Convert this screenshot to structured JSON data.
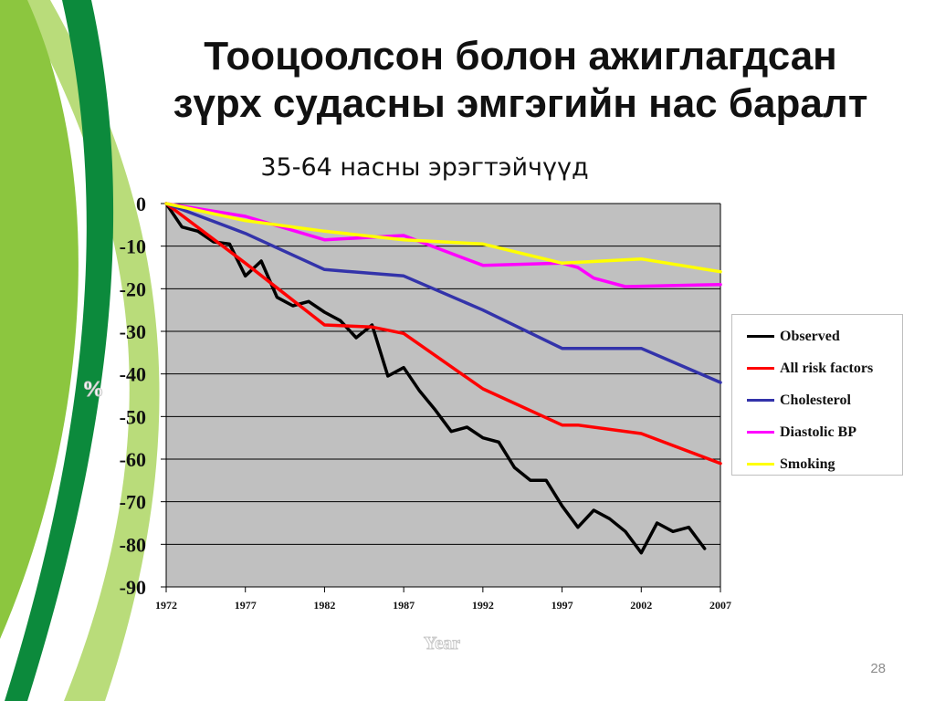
{
  "slide": {
    "title_line1": "Тооцоолсон болон ажиглагдсан",
    "title_line2": "зүрх судасны эмгэгийн нас баралт",
    "subtitle": "35-64 насны эрэгтэйчүүд",
    "page_number": "28",
    "decoration_colors": [
      "#0c8a3c",
      "#8cc63f",
      "#b9dc7a"
    ]
  },
  "chart_data": {
    "type": "line",
    "title": "",
    "xlabel": "Year",
    "ylabel": "%",
    "xlim": [
      1972,
      2007
    ],
    "ylim": [
      -90,
      0
    ],
    "x_ticks": [
      "1972",
      "1977",
      "1982",
      "1987",
      "1992",
      "1997",
      "2002",
      "2007"
    ],
    "y_ticks": [
      "0",
      "-10",
      "-20",
      "-30",
      "-40",
      "-50",
      "-60",
      "-70",
      "-80",
      "-90"
    ],
    "grid": "horizontal",
    "plot_background": "#c0c0c0",
    "legend_position": "right",
    "series": [
      {
        "name": "Observed",
        "color": "#000000",
        "points": [
          [
            1972,
            0
          ],
          [
            1973,
            -5.5
          ],
          [
            1974,
            -6.5
          ],
          [
            1975,
            -9
          ],
          [
            1976,
            -9.5
          ],
          [
            1977,
            -17
          ],
          [
            1978,
            -13.5
          ],
          [
            1979,
            -22
          ],
          [
            1980,
            -24
          ],
          [
            1981,
            -23
          ],
          [
            1982,
            -25.5
          ],
          [
            1983,
            -27.5
          ],
          [
            1984,
            -31.5
          ],
          [
            1985,
            -28.5
          ],
          [
            1986,
            -40.5
          ],
          [
            1987,
            -38.5
          ],
          [
            1988,
            -44
          ],
          [
            1989,
            -48.5
          ],
          [
            1990,
            -53.5
          ],
          [
            1991,
            -52.5
          ],
          [
            1992,
            -55
          ],
          [
            1993,
            -56
          ],
          [
            1994,
            -62
          ],
          [
            1995,
            -65
          ],
          [
            1996,
            -65
          ],
          [
            1997,
            -71
          ],
          [
            1998,
            -76
          ],
          [
            1999,
            -72
          ],
          [
            2000,
            -74
          ],
          [
            2001,
            -77
          ],
          [
            2002,
            -82
          ],
          [
            2003,
            -75
          ],
          [
            2004,
            -77
          ],
          [
            2005,
            -76
          ],
          [
            2006,
            -81
          ]
        ]
      },
      {
        "name": "All risk factors",
        "color": "#ff0000",
        "points": [
          [
            1972,
            0
          ],
          [
            1977,
            -14
          ],
          [
            1982,
            -28.5
          ],
          [
            1985,
            -29
          ],
          [
            1987,
            -30.5
          ],
          [
            1992,
            -43.5
          ],
          [
            1997,
            -52
          ],
          [
            1998,
            -52
          ],
          [
            2002,
            -54
          ],
          [
            2007,
            -61
          ]
        ]
      },
      {
        "name": "Cholesterol",
        "color": "#3333aa",
        "points": [
          [
            1972,
            0
          ],
          [
            1977,
            -7
          ],
          [
            1982,
            -15.5
          ],
          [
            1987,
            -17
          ],
          [
            1992,
            -25
          ],
          [
            1997,
            -34
          ],
          [
            2002,
            -34
          ],
          [
            2007,
            -42
          ]
        ]
      },
      {
        "name": "Diastolic BP",
        "color": "#ff00ff",
        "points": [
          [
            1972,
            0
          ],
          [
            1977,
            -3
          ],
          [
            1982,
            -8.5
          ],
          [
            1987,
            -7.5
          ],
          [
            1992,
            -14.5
          ],
          [
            1997,
            -14
          ],
          [
            1998,
            -15
          ],
          [
            1999,
            -17.5
          ],
          [
            2001,
            -19.5
          ],
          [
            2007,
            -19
          ]
        ]
      },
      {
        "name": "Smoking",
        "color": "#ffff00",
        "points": [
          [
            1972,
            0
          ],
          [
            1977,
            -4
          ],
          [
            1982,
            -6.5
          ],
          [
            1987,
            -8.5
          ],
          [
            1992,
            -9.5
          ],
          [
            1997,
            -14
          ],
          [
            2002,
            -13
          ],
          [
            2007,
            -16
          ]
        ]
      }
    ]
  }
}
